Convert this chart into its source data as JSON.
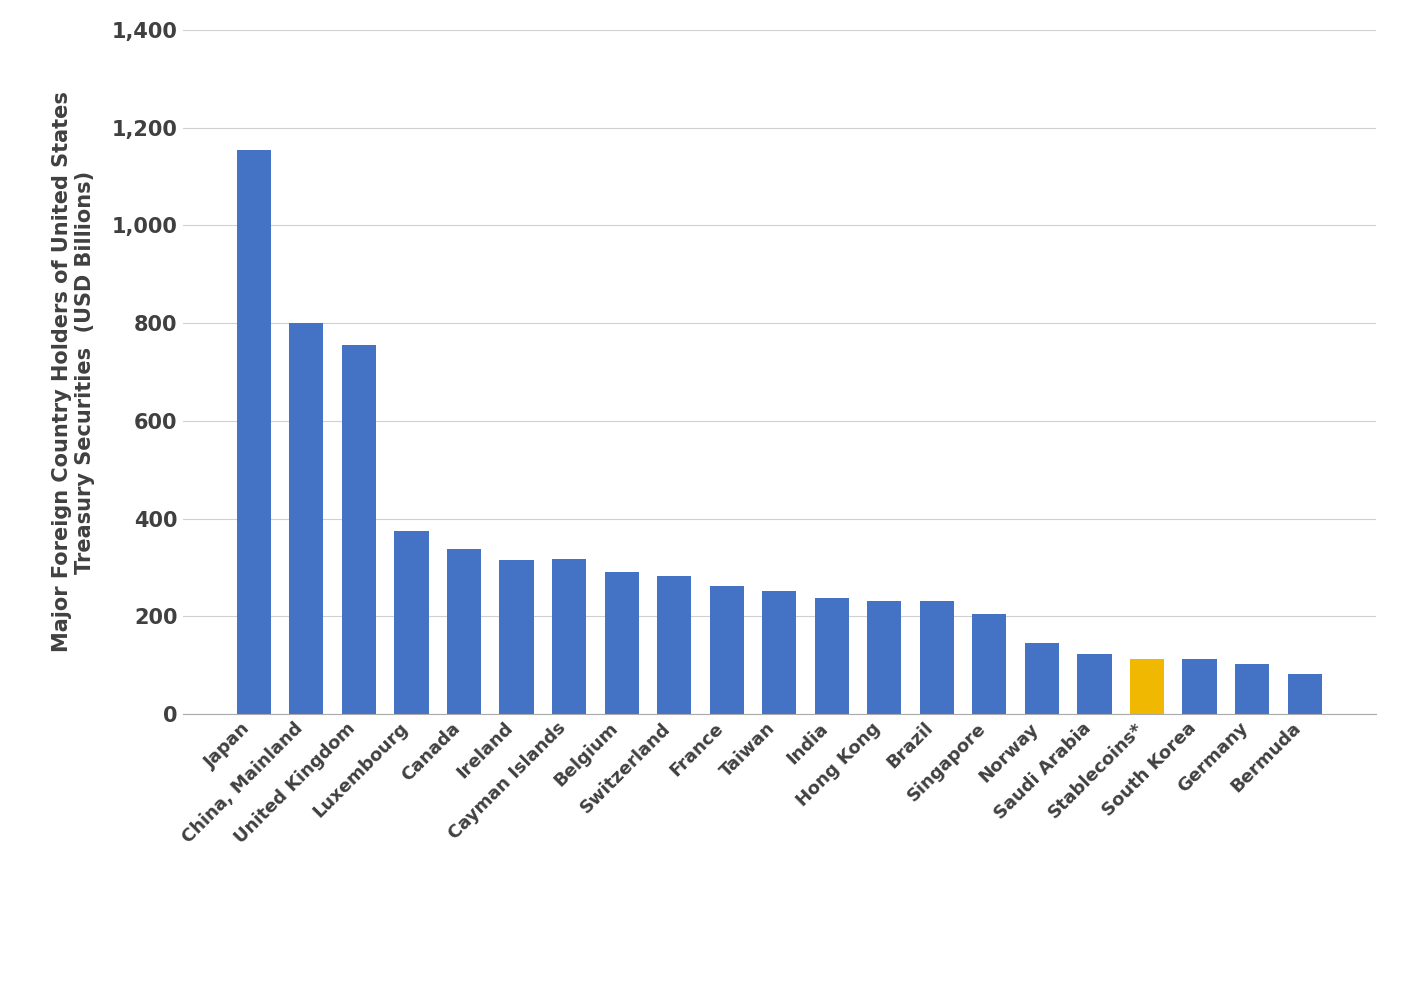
{
  "categories": [
    "Japan",
    "China, Mainland",
    "United Kingdom",
    "Luxembourg",
    "Canada",
    "Ireland",
    "Cayman Islands",
    "Belgium",
    "Switzerland",
    "France",
    "Taiwan",
    "India",
    "Hong Kong",
    "Brazil",
    "Singapore",
    "Norway",
    "Saudi Arabia",
    "Stablecoins*",
    "South Korea",
    "Germany",
    "Bermuda"
  ],
  "values": [
    1155,
    800,
    755,
    375,
    338,
    315,
    318,
    290,
    283,
    263,
    253,
    237,
    232,
    231,
    205,
    145,
    123,
    113,
    112,
    103,
    82
  ],
  "bar_colors": [
    "#4472c4",
    "#4472c4",
    "#4472c4",
    "#4472c4",
    "#4472c4",
    "#4472c4",
    "#4472c4",
    "#4472c4",
    "#4472c4",
    "#4472c4",
    "#4472c4",
    "#4472c4",
    "#4472c4",
    "#4472c4",
    "#4472c4",
    "#4472c4",
    "#4472c4",
    "#f0b800",
    "#4472c4",
    "#4472c4",
    "#4472c4"
  ],
  "ylabel_line1": "Major Foreign Country Holders of United States",
  "ylabel_line2": "Treasury Securities  (USD Billions)",
  "ylim": [
    0,
    1400
  ],
  "yticks": [
    0,
    200,
    400,
    600,
    800,
    1000,
    1200,
    1400
  ],
  "background_color": "#ffffff",
  "bar_edge_color": "none",
  "grid_color": "#d0d0d0",
  "ylabel_fontsize": 15,
  "tick_fontsize": 15,
  "xtick_fontsize": 13,
  "bar_color_default": "#4472c4",
  "text_color": "#404040"
}
